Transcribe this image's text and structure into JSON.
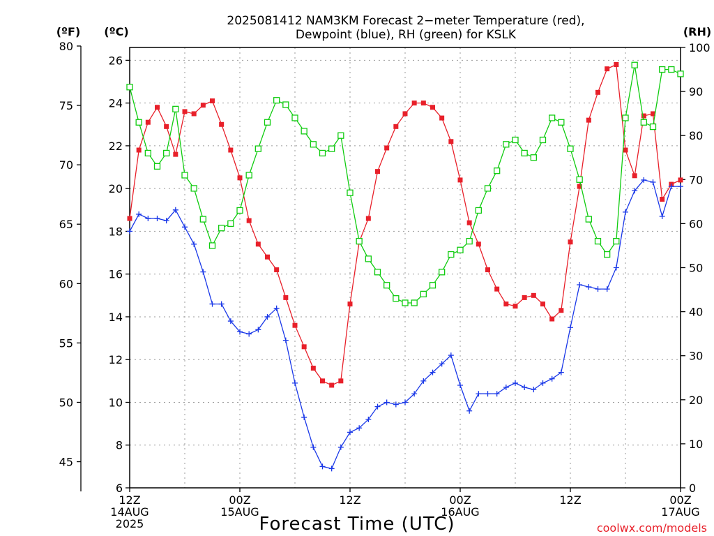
{
  "chart_data": {
    "type": "line",
    "title_line1": "2025081412 NAM3KM Forecast 2−meter Temperature (red),",
    "title_line2": "Dewpoint (blue), RH (green) for KSLK",
    "xlabel": "Forecast Time (UTC)",
    "credit": "coolwx.com/models",
    "units": {
      "f": "(ºF)",
      "c": "(ºC)",
      "rh": "(RH)"
    },
    "x_hours": {
      "start": 0,
      "end": 60,
      "step": 1
    },
    "x_ticks": [
      {
        "hour": 0,
        "lines": [
          "12Z",
          "14AUG",
          "2025"
        ]
      },
      {
        "hour": 12,
        "lines": [
          "00Z",
          "15AUG"
        ]
      },
      {
        "hour": 24,
        "lines": [
          "12Z"
        ]
      },
      {
        "hour": 36,
        "lines": [
          "00Z",
          "16AUG"
        ]
      },
      {
        "hour": 48,
        "lines": [
          "12Z"
        ]
      },
      {
        "hour": 60,
        "lines": [
          "00Z",
          "17AUG"
        ]
      }
    ],
    "y_celsius": {
      "min": 6,
      "max": 26.6,
      "ticks": [
        "6",
        "8",
        "10",
        "12",
        "14",
        "16",
        "18",
        "20",
        "22",
        "24",
        "26"
      ]
    },
    "y_fahrenheit": {
      "ticks": [
        "45",
        "50",
        "55",
        "60",
        "65",
        "70",
        "75",
        "80"
      ]
    },
    "y_rh": {
      "min": 0,
      "max": 100,
      "ticks": [
        "0",
        "10",
        "20",
        "30",
        "40",
        "50",
        "60",
        "70",
        "80",
        "90",
        "100"
      ]
    },
    "colors": {
      "temperature": "#e8202a",
      "dewpoint": "#1a38e8",
      "rh": "#10cc10"
    },
    "series": [
      {
        "key": "temperature",
        "unit": "C",
        "marker": "square",
        "values": [
          18.6,
          21.8,
          23.1,
          23.8,
          22.9,
          21.6,
          23.6,
          23.5,
          23.9,
          24.1,
          23.0,
          21.8,
          20.5,
          18.5,
          17.4,
          16.8,
          16.2,
          14.9,
          13.6,
          12.6,
          11.6,
          11.0,
          10.8,
          11.0,
          14.6,
          17.5,
          18.6,
          20.8,
          21.9,
          22.9,
          23.5,
          24.0,
          24.0,
          23.8,
          23.3,
          22.2,
          20.4,
          18.4,
          17.4,
          16.2,
          15.3,
          14.6,
          14.5,
          14.9,
          15.0,
          14.6,
          13.9,
          14.3,
          17.5,
          20.1,
          23.2,
          24.5,
          25.6,
          25.8,
          21.8,
          20.6,
          23.4,
          23.5,
          19.5,
          20.2,
          20.4
        ]
      },
      {
        "key": "dewpoint",
        "unit": "C",
        "marker": "plus",
        "values": [
          18.0,
          18.8,
          18.6,
          18.6,
          18.5,
          19.0,
          18.2,
          17.4,
          16.1,
          14.6,
          14.6,
          13.8,
          13.3,
          13.2,
          13.4,
          14.0,
          14.4,
          12.9,
          10.9,
          9.3,
          7.9,
          7.0,
          6.9,
          7.9,
          8.6,
          8.8,
          9.2,
          9.8,
          10.0,
          9.9,
          10.0,
          10.4,
          11.0,
          11.4,
          11.8,
          12.2,
          10.8,
          9.6,
          10.4,
          10.4,
          10.4,
          10.7,
          10.9,
          10.7,
          10.6,
          10.9,
          11.1,
          11.4,
          13.5,
          15.5,
          15.4,
          15.3,
          15.3,
          16.3,
          18.9,
          19.9,
          20.4,
          20.3,
          18.7,
          20.1,
          20.1
        ]
      },
      {
        "key": "rh",
        "unit": "%",
        "marker": "open-square",
        "values": [
          91,
          83,
          76,
          73,
          76,
          86,
          71,
          68,
          61,
          55,
          59,
          60,
          63,
          71,
          77,
          83,
          88,
          87,
          84,
          81,
          78,
          76,
          77,
          80,
          67,
          56,
          52,
          49,
          46,
          43,
          42,
          42,
          44,
          46,
          49,
          53,
          54,
          56,
          63,
          68,
          72,
          78,
          79,
          76,
          75,
          79,
          84,
          83,
          77,
          70,
          61,
          56,
          53,
          56,
          84,
          96,
          83,
          82,
          95,
          95,
          94
        ]
      }
    ]
  }
}
